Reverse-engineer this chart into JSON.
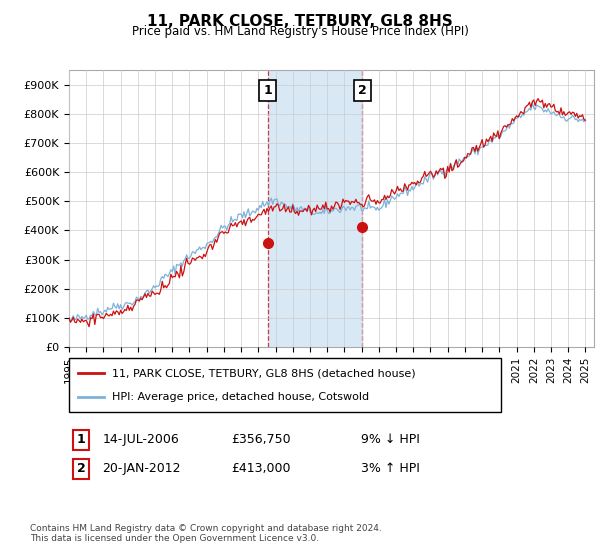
{
  "title": "11, PARK CLOSE, TETBURY, GL8 8HS",
  "subtitle": "Price paid vs. HM Land Registry's House Price Index (HPI)",
  "hpi_label": "HPI: Average price, detached house, Cotswold",
  "price_label": "11, PARK CLOSE, TETBURY, GL8 8HS (detached house)",
  "footnote": "Contains HM Land Registry data © Crown copyright and database right 2024.\nThis data is licensed under the Open Government Licence v3.0.",
  "transaction1": {
    "num": "1",
    "date": "14-JUL-2006",
    "price": "£356,750",
    "hpi": "9% ↓ HPI"
  },
  "transaction2": {
    "num": "2",
    "date": "20-JAN-2012",
    "price": "£413,000",
    "hpi": "3% ↑ HPI"
  },
  "hpi_color": "#7fb2d8",
  "price_color": "#cc1111",
  "highlight_color": "#d8e8f5",
  "background_color": "#ffffff",
  "grid_color": "#cccccc",
  "ylim": [
    0,
    950000
  ],
  "yticks": [
    0,
    100000,
    200000,
    300000,
    400000,
    500000,
    600000,
    700000,
    800000,
    900000
  ],
  "ytick_labels": [
    "£0",
    "£100K",
    "£200K",
    "£300K",
    "£400K",
    "£500K",
    "£600K",
    "£700K",
    "£800K",
    "£900K"
  ],
  "sale1_x": 2006.54,
  "sale1_y": 356750,
  "sale2_x": 2012.05,
  "sale2_y": 413000,
  "shade_start": 2006.54,
  "shade_end": 2012.05,
  "xlim_left": 1995.3,
  "xlim_right": 2025.5
}
